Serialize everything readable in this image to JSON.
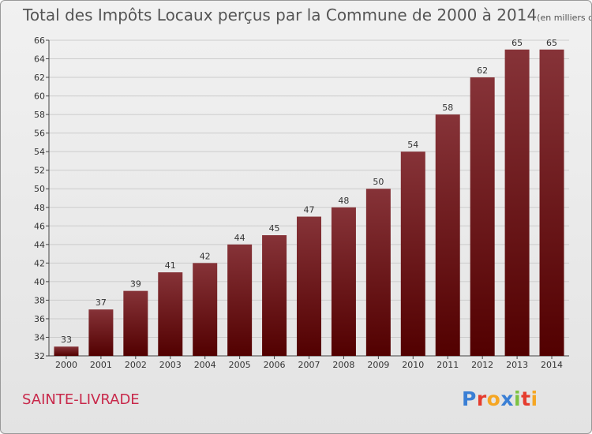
{
  "chart_data": {
    "type": "bar",
    "title": "Total des Impôts Locaux perçus par la Commune de 2000 à 2014",
    "unit": "(en milliers d'€)",
    "categories": [
      "2000",
      "2001",
      "2002",
      "2003",
      "2004",
      "2005",
      "2006",
      "2007",
      "2008",
      "2009",
      "2010",
      "2011",
      "2012",
      "2013",
      "2014"
    ],
    "values": [
      33,
      37,
      39,
      41,
      42,
      44,
      45,
      47,
      48,
      50,
      54,
      58,
      62,
      65,
      65
    ],
    "ylim": [
      32,
      66
    ],
    "yticks": [
      32,
      34,
      36,
      38,
      40,
      42,
      44,
      46,
      48,
      50,
      52,
      54,
      56,
      58,
      60,
      62,
      64,
      66
    ],
    "grid": true,
    "xlabel": "",
    "ylabel": ""
  },
  "commune": "SAINTE-LIVRADE",
  "logo": {
    "letters": [
      "P",
      "r",
      "o",
      "x",
      "i",
      "t",
      "i"
    ],
    "colors": [
      "#3a7fd5",
      "#e53c2e",
      "#f5a623",
      "#3a7fd5",
      "#7cc242",
      "#e53c2e",
      "#f5a623"
    ]
  },
  "colors": {
    "bar_top": "#863338",
    "bar_bottom": "#520000",
    "grid": "#cccccc",
    "axis": "#444444"
  }
}
